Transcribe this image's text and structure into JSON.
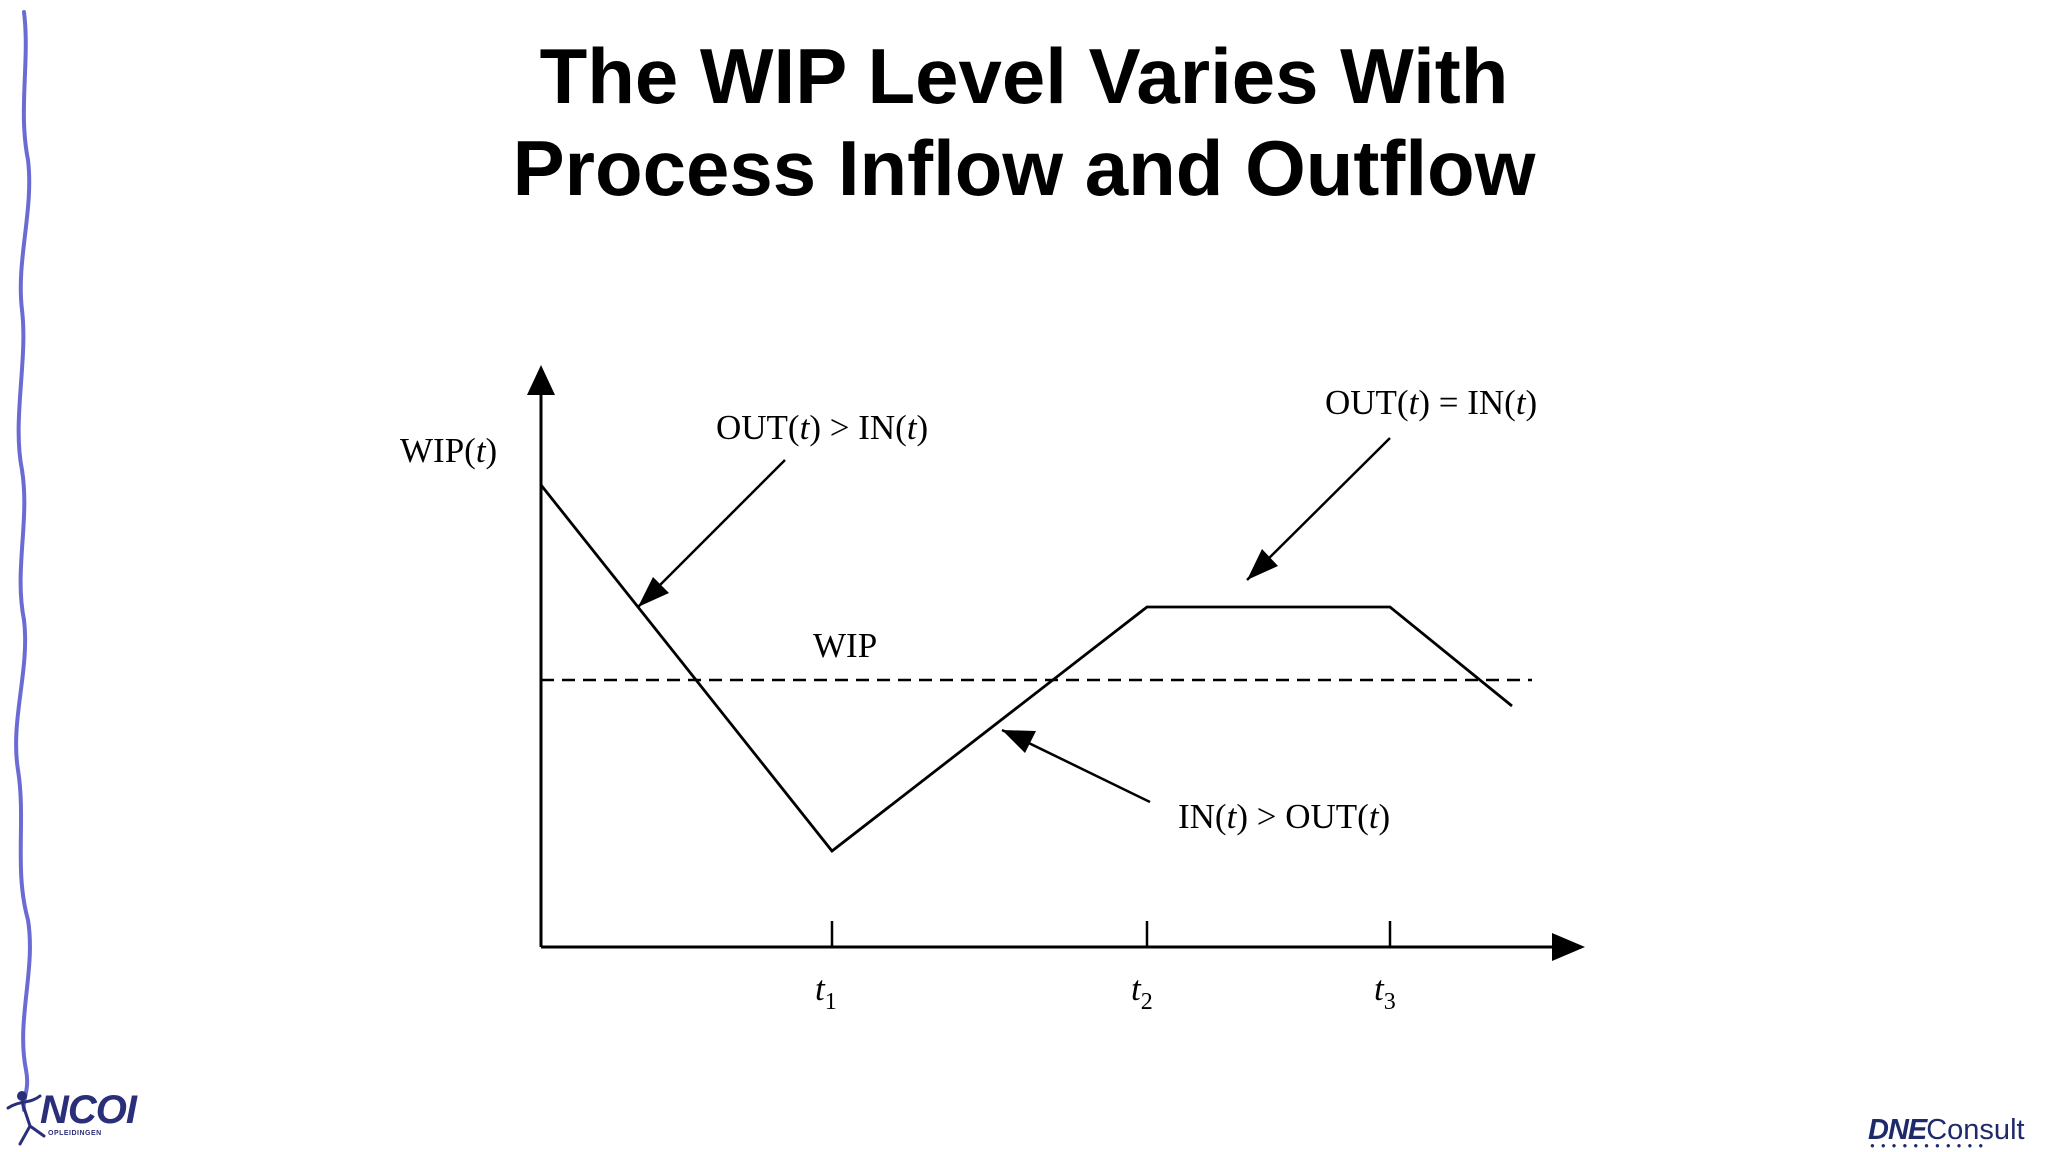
{
  "title": {
    "line1": "The WIP Level Varies With",
    "line2": "Process Inflow and Outflow"
  },
  "diagram": {
    "y_axis": {
      "label": "WIP(",
      "var": "t",
      "close": ")"
    },
    "x_ticks": [
      {
        "var": "t",
        "sub": "1"
      },
      {
        "var": "t",
        "sub": "2"
      },
      {
        "var": "t",
        "sub": "3"
      }
    ],
    "average_line_label": "WIP",
    "annotations": {
      "decreasing": {
        "left": "OUT(",
        "var1": "t",
        "mid": ") > IN(",
        "var2": "t",
        "end": ")"
      },
      "steady": {
        "left": "OUT(",
        "var1": "t",
        "mid": ") = IN(",
        "var2": "t",
        "end": ")"
      },
      "increasing": {
        "left": "IN(",
        "var1": "t",
        "mid": ") > OUT(",
        "var2": "t",
        "end": ")"
      }
    },
    "line_color": "#000000",
    "border_color": "#6b6bd6"
  },
  "logos": {
    "left": {
      "name": "NCOI",
      "subtitle": "OPLEIDINGEN",
      "color": "#2b2f7a"
    },
    "right": {
      "mark": "DNE",
      "word": "Consult",
      "color": "#1f2a6b"
    }
  }
}
